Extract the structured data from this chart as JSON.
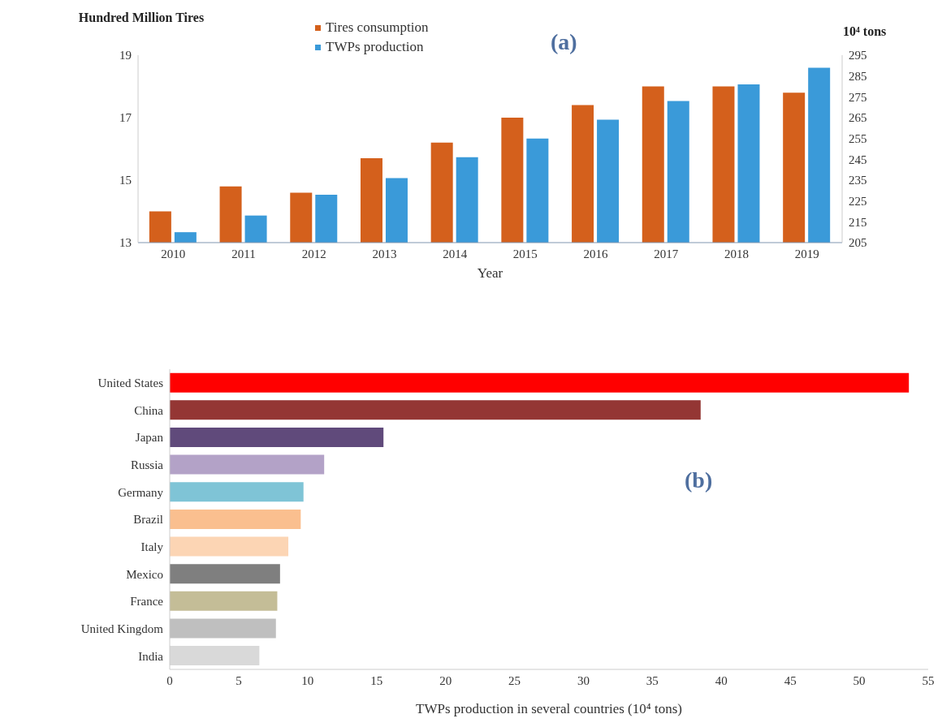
{
  "chart_data": [
    {
      "type": "bar",
      "annotations": [
        "(a)"
      ],
      "xlabel": "Year",
      "ylabel": "Hundred Million Tires",
      "y2label": "10⁴ tons",
      "categories": [
        "2010",
        "2011",
        "2012",
        "2013",
        "2014",
        "2015",
        "2016",
        "2017",
        "2018",
        "2019"
      ],
      "series": [
        {
          "name": "Tires consumption",
          "color": "#d4601c",
          "values": [
            14.0,
            14.8,
            14.6,
            15.7,
            16.2,
            17.0,
            17.4,
            18.0,
            18.0,
            17.8
          ]
        },
        {
          "name": "TWPs production",
          "color": "#3a9ad9",
          "axis": "y2",
          "values": [
            210,
            218,
            228,
            236,
            246,
            255,
            264,
            273,
            281,
            289
          ]
        }
      ],
      "ylim": [
        13,
        19
      ],
      "yticks": [
        13,
        15,
        17,
        19
      ],
      "y2lim": [
        205,
        295
      ],
      "y2ticks": [
        205,
        215,
        225,
        235,
        245,
        255,
        265,
        275,
        285,
        295
      ],
      "legend": "top"
    },
    {
      "type": "bar",
      "orientation": "horizontal",
      "annotations": [
        "(b)"
      ],
      "xlabel": "TWPs production in several countries (10⁴ tons)",
      "categories": [
        "United States",
        "China",
        "Japan",
        "Russia",
        "Germany",
        "Brazil",
        "Italy",
        "Mexico",
        "France",
        "United Kingdom",
        "India"
      ],
      "values": [
        53.6,
        38.5,
        15.5,
        11.2,
        9.7,
        9.5,
        8.6,
        8.0,
        7.8,
        7.7,
        6.5
      ],
      "colors": [
        "#ff0000",
        "#943634",
        "#604a7b",
        "#b3a2c7",
        "#7fc4d6",
        "#fabf8f",
        "#fcd5b4",
        "#7f7f7f",
        "#c4bd97",
        "#bfbfbf",
        "#d9d9d9"
      ],
      "xlim": [
        0,
        55
      ],
      "xticks": [
        0,
        5,
        10,
        15,
        20,
        25,
        30,
        35,
        40,
        45,
        50,
        55
      ]
    }
  ]
}
